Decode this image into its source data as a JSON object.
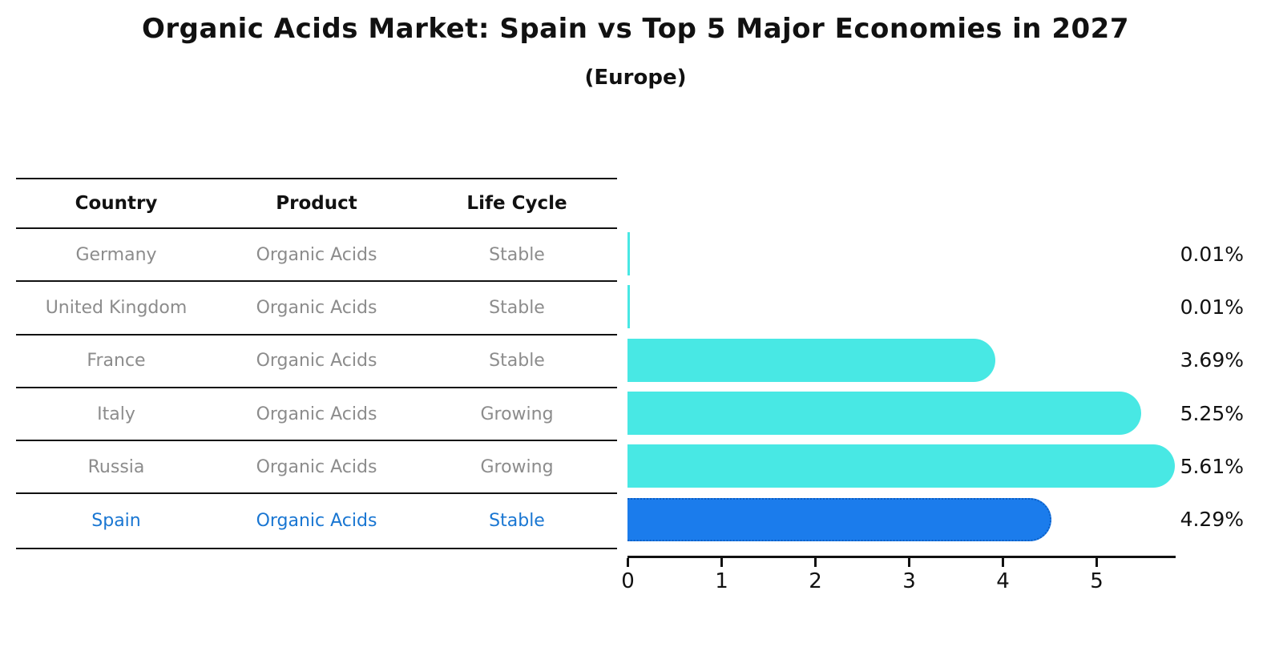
{
  "chart_data": {
    "type": "bar",
    "orientation": "horizontal",
    "title": "Organic Acids Market: Spain vs Top 5 Major Economies in 2027",
    "subtitle": "(Europe)",
    "categories": [
      "Germany",
      "United Kingdom",
      "France",
      "Italy",
      "Russia",
      "Spain"
    ],
    "values": [
      0.01,
      0.01,
      3.69,
      5.25,
      5.61,
      4.29
    ],
    "value_labels": [
      "0.01%",
      "0.01%",
      "3.69%",
      "5.25%",
      "5.61%",
      "4.29%"
    ],
    "highlight_index": 5,
    "xticks": [
      0,
      1,
      2,
      3,
      4,
      5
    ],
    "xlim": [
      0,
      5.85
    ],
    "grid": false,
    "legend": false
  },
  "table": {
    "headers": [
      "Country",
      "Product",
      "Life Cycle"
    ],
    "rows": [
      {
        "country": "Germany",
        "product": "Organic Acids",
        "life_cycle": "Stable"
      },
      {
        "country": "United Kingdom",
        "product": "Organic Acids",
        "life_cycle": "Stable"
      },
      {
        "country": "France",
        "product": "Organic Acids",
        "life_cycle": "Stable"
      },
      {
        "country": "Italy",
        "product": "Organic Acids",
        "life_cycle": "Growing"
      },
      {
        "country": "Russia",
        "product": "Organic Acids",
        "life_cycle": "Growing"
      },
      {
        "country": "Spain",
        "product": "Organic Acids",
        "life_cycle": "Stable"
      }
    ]
  },
  "colors": {
    "bar": "#48E8E4",
    "highlight_bar": "#1B7CEC",
    "highlight_border": "#0D5FC4",
    "highlight_text": "#1976D2",
    "table_text": "#8C8C8C",
    "text": "#111111"
  }
}
